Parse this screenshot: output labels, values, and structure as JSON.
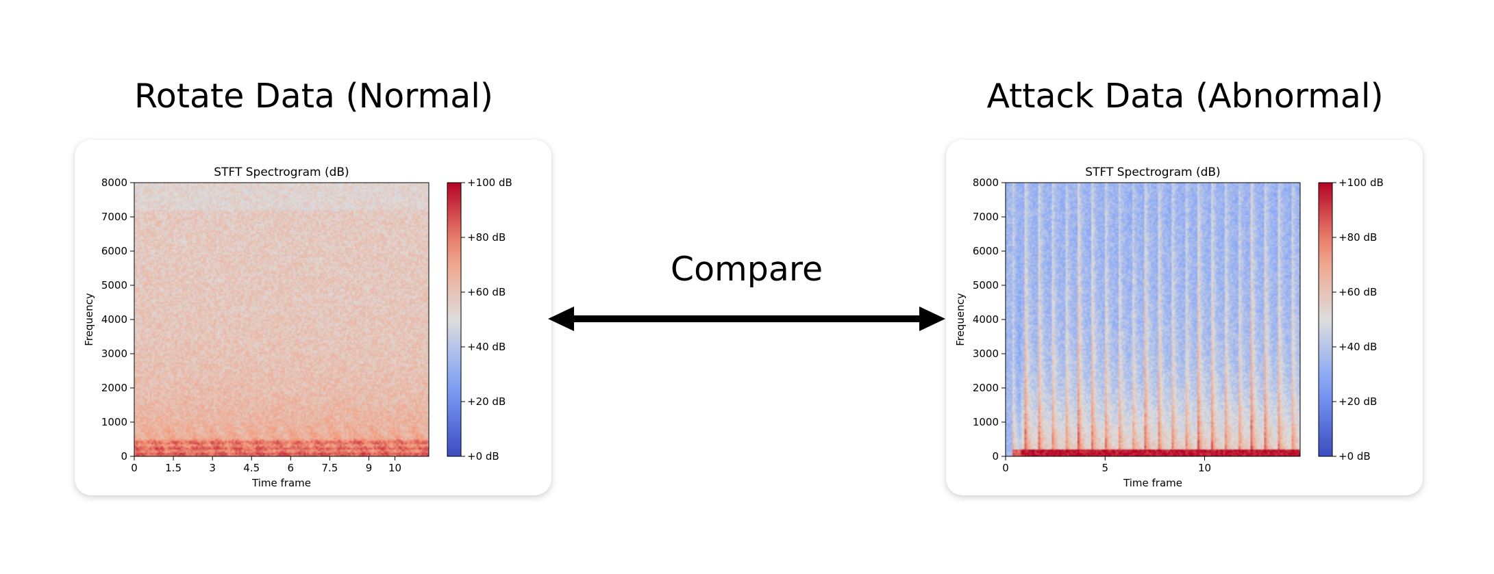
{
  "panels": {
    "left": {
      "title": "Rotate Data (Normal)",
      "chart_data": {
        "type": "heatmap",
        "title": "STFT Spectrogram (dB)",
        "xlabel": "Time frame",
        "ylabel": "Frequency",
        "xlim": [
          0,
          11.3
        ],
        "ylim": [
          0,
          8000
        ],
        "x_ticks": [
          "0",
          "1.5",
          "3",
          "4.5",
          "6",
          "7.5",
          "9",
          "10"
        ],
        "x_tick_values": [
          0,
          1.5,
          3,
          4.5,
          6,
          7.5,
          9,
          10
        ],
        "y_ticks": [
          "0",
          "1000",
          "2000",
          "3000",
          "4000",
          "5000",
          "6000",
          "7000",
          "8000"
        ],
        "y_tick_values": [
          0,
          1000,
          2000,
          3000,
          4000,
          5000,
          6000,
          7000,
          8000
        ],
        "colorbar": {
          "ticks": [
            "+0 dB",
            "+20 dB",
            "+40 dB",
            "+60 dB",
            "+80 dB",
            "+100 dB"
          ],
          "tick_values": [
            0,
            20,
            40,
            60,
            80,
            100
          ],
          "range": [
            0,
            100
          ],
          "colormap": "coolwarm"
        },
        "pattern": "continuous-broadband"
      }
    },
    "right": {
      "title": "Attack Data (Abnormal)",
      "chart_data": {
        "type": "heatmap",
        "title": "STFT Spectrogram (dB)",
        "xlabel": "Time frame",
        "ylabel": "Frequency",
        "xlim": [
          0,
          14.8
        ],
        "ylim": [
          0,
          8000
        ],
        "x_ticks": [
          "0",
          "5",
          "10"
        ],
        "x_tick_values": [
          0,
          5,
          10
        ],
        "y_ticks": [
          "0",
          "1000",
          "2000",
          "3000",
          "4000",
          "5000",
          "6000",
          "7000",
          "8000"
        ],
        "y_tick_values": [
          0,
          1000,
          2000,
          3000,
          4000,
          5000,
          6000,
          7000,
          8000
        ],
        "colorbar": {
          "ticks": [
            "+0 dB",
            "+20 dB",
            "+40 dB",
            "+60 dB",
            "+80 dB",
            "+100 dB"
          ],
          "tick_values": [
            0,
            20,
            40,
            60,
            80,
            100
          ],
          "range": [
            0,
            100
          ],
          "colormap": "coolwarm"
        },
        "pattern": "periodic-vertical-bursts"
      }
    }
  },
  "compare": {
    "label": "Compare"
  }
}
